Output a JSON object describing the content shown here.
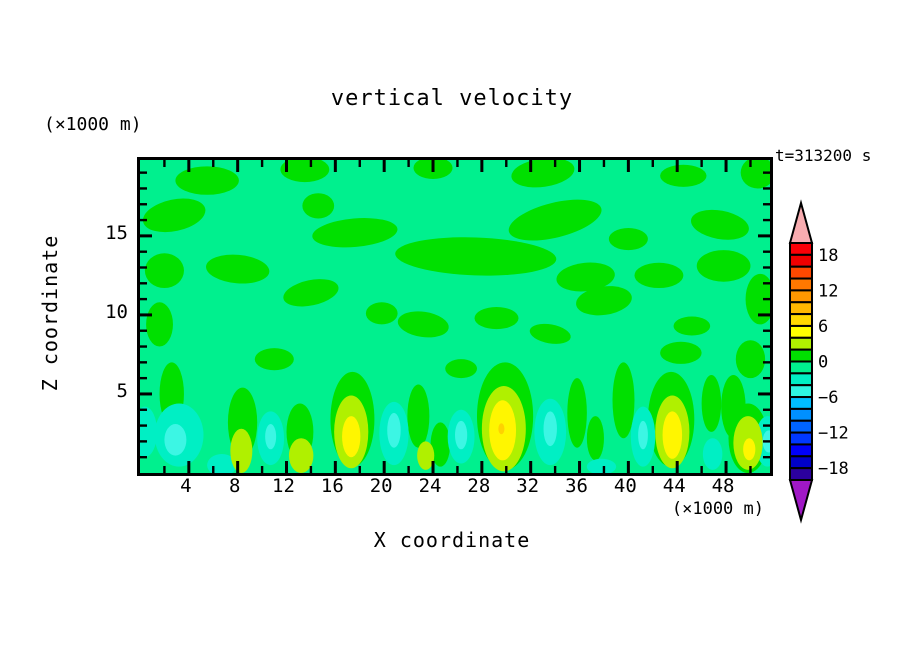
{
  "title": "vertical velocity",
  "timestamp": "t=313200 s",
  "axes": {
    "x": {
      "label": "X coordinate",
      "unit": "(×1000 m)",
      "min": 0,
      "max": 51.6,
      "minor_step": 2,
      "major_step": 4,
      "tick_labels": [
        "4",
        "8",
        "12",
        "16",
        "20",
        "24",
        "28",
        "32",
        "36",
        "40",
        "44",
        "48"
      ],
      "tick_values": [
        4,
        8,
        12,
        16,
        20,
        24,
        28,
        32,
        36,
        40,
        44,
        48
      ]
    },
    "z": {
      "label": "Z coordinate",
      "unit": "(×1000 m)",
      "min": 0,
      "max": 19.8,
      "minor_step": 1,
      "major_step": 5,
      "tick_labels": [
        "5",
        "10",
        "15"
      ],
      "tick_values": [
        5,
        10,
        15
      ]
    }
  },
  "colorbar": {
    "top_value": 20,
    "bottom_value": -20,
    "segment_step": 2,
    "labels": [
      "18",
      "12",
      "6",
      "0",
      "−6",
      "−12",
      "−18"
    ],
    "label_boundary_index": [
      1,
      4,
      7,
      10,
      13,
      16,
      19
    ],
    "segments_top_to_bottom": [
      "#FB0007",
      "#F00000",
      "#FF4800",
      "#FF7800",
      "#FF9800",
      "#FFB800",
      "#FFD800",
      "#FFFF00",
      "#B0F000",
      "#00E000",
      "#00F08E",
      "#00EFC4",
      "#2FF4E2",
      "#00BEFF",
      "#0090FF",
      "#0064FF",
      "#0038FF",
      "#0000FA",
      "#0000C8",
      "#2B009E"
    ],
    "over_color": "#F8ACB0",
    "under_color": "#A018C6"
  },
  "chart_data": {
    "type": "filled_contour",
    "field": "vertical velocity",
    "title": "vertical velocity",
    "xlabel": "X coordinate (×1000 m)",
    "ylabel": "Z coordinate (×1000 m)",
    "x_range": [
      0,
      51.6
    ],
    "z_range": [
      0,
      19.8
    ],
    "contour_interval": 2,
    "background_band": "-2..0",
    "palette": {
      "bg": "#00F08E",
      "g": "#00E000",
      "c": "#B0F000",
      "y": "#FFF600",
      "o": "#FFD200",
      "a": "#00EFC4",
      "t": "#3CF6E4"
    },
    "band_meaning": {
      "g": "0..2",
      "c": "2..4",
      "y": "4..6",
      "o": "6..8",
      "a": "-4..-2",
      "t": "-6..-4",
      "bg": "-2..0"
    },
    "features": [
      [
        5.5,
        18.5,
        2.6,
        0.9,
        0,
        "g"
      ],
      [
        13.5,
        19.2,
        2.0,
        0.8,
        0,
        "g"
      ],
      [
        24,
        19.3,
        1.6,
        0.7,
        0,
        "g"
      ],
      [
        33,
        19,
        2.6,
        0.9,
        -8,
        "g"
      ],
      [
        44.5,
        18.8,
        1.9,
        0.7,
        0,
        "g"
      ],
      [
        50.6,
        19,
        1.4,
        1.0,
        0,
        "g"
      ],
      [
        2.8,
        16.3,
        2.6,
        1.0,
        -12,
        "g"
      ],
      [
        14.6,
        16.9,
        1.3,
        0.8,
        0,
        "g"
      ],
      [
        17.6,
        15.2,
        3.5,
        0.9,
        -5,
        "g"
      ],
      [
        34,
        16,
        3.9,
        1.1,
        -14,
        "g"
      ],
      [
        40,
        14.8,
        1.6,
        0.7,
        0,
        "g"
      ],
      [
        47.5,
        15.7,
        2.4,
        0.9,
        10,
        "g"
      ],
      [
        8,
        12.9,
        2.6,
        0.9,
        5,
        "g"
      ],
      [
        2,
        12.8,
        1.6,
        1.1,
        0,
        "g"
      ],
      [
        14,
        11.4,
        2.3,
        0.8,
        -12,
        "g"
      ],
      [
        27.5,
        13.7,
        6.6,
        1.2,
        2,
        "g"
      ],
      [
        36.5,
        12.4,
        2.4,
        0.9,
        -6,
        "g"
      ],
      [
        42.5,
        12.5,
        2.0,
        0.8,
        0,
        "g"
      ],
      [
        47.8,
        13.1,
        2.2,
        1.0,
        0,
        "g"
      ],
      [
        50.8,
        11,
        1.2,
        1.6,
        0,
        "g"
      ],
      [
        1.6,
        9.4,
        1.1,
        1.4,
        0,
        "g"
      ],
      [
        19.8,
        10.1,
        1.3,
        0.7,
        0,
        "g"
      ],
      [
        23.2,
        9.4,
        2.1,
        0.8,
        8,
        "g"
      ],
      [
        29.2,
        9.8,
        1.8,
        0.7,
        0,
        "g"
      ],
      [
        33.6,
        8.8,
        1.7,
        0.6,
        10,
        "g"
      ],
      [
        38,
        10.9,
        2.3,
        0.9,
        -8,
        "g"
      ],
      [
        45.2,
        9.3,
        1.5,
        0.6,
        0,
        "g"
      ],
      [
        50,
        7.2,
        1.2,
        1.2,
        0,
        "g"
      ],
      [
        11,
        7.2,
        1.6,
        0.7,
        0,
        "g"
      ],
      [
        26.3,
        6.6,
        1.3,
        0.6,
        0,
        "g"
      ],
      [
        44.3,
        7.6,
        1.7,
        0.7,
        0,
        "g"
      ],
      [
        2.6,
        5,
        1.0,
        2.0,
        0,
        "g"
      ],
      [
        8.4,
        3.2,
        1.2,
        2.2,
        0,
        "g"
      ],
      [
        13.1,
        2.6,
        1.1,
        1.8,
        0,
        "g"
      ],
      [
        17.4,
        3.4,
        1.8,
        3.0,
        0,
        "g"
      ],
      [
        22.8,
        3.6,
        0.9,
        2.0,
        0,
        "g"
      ],
      [
        24.6,
        1.8,
        0.8,
        1.4,
        0,
        "g"
      ],
      [
        29.9,
        3.6,
        2.3,
        3.4,
        0,
        "g"
      ],
      [
        35.8,
        3.8,
        0.8,
        2.2,
        0,
        "g"
      ],
      [
        37.3,
        2.2,
        0.7,
        1.4,
        0,
        "g"
      ],
      [
        39.6,
        4.6,
        0.9,
        2.4,
        0,
        "g"
      ],
      [
        43.5,
        3.4,
        1.9,
        3.0,
        0,
        "g"
      ],
      [
        46.8,
        4.4,
        0.8,
        1.8,
        0,
        "g"
      ],
      [
        48.6,
        4.2,
        1.0,
        2.0,
        0,
        "g"
      ],
      [
        49.8,
        2.2,
        1.6,
        2.2,
        0,
        "g"
      ],
      [
        3.2,
        2.4,
        2.0,
        2.0,
        0,
        "a"
      ],
      [
        0.4,
        2.6,
        1.0,
        1.6,
        0,
        "a"
      ],
      [
        10.7,
        2.2,
        1.1,
        1.7,
        0,
        "a"
      ],
      [
        20.8,
        2.5,
        1.2,
        2.0,
        0,
        "a"
      ],
      [
        26.3,
        2.3,
        1.1,
        1.7,
        0,
        "a"
      ],
      [
        33.6,
        2.6,
        1.3,
        2.1,
        0,
        "a"
      ],
      [
        41.2,
        2.3,
        1.0,
        1.9,
        0,
        "a"
      ],
      [
        51.4,
        2.0,
        1.0,
        1.6,
        0,
        "a"
      ],
      [
        46.9,
        1.2,
        0.8,
        1.0,
        0,
        "a"
      ],
      [
        6.7,
        0.5,
        1.2,
        0.7,
        0,
        "a"
      ],
      [
        37.8,
        0.4,
        1.2,
        0.5,
        0,
        "a"
      ],
      [
        2.9,
        2.1,
        0.9,
        1.0,
        0,
        "t"
      ],
      [
        10.7,
        2.3,
        0.45,
        0.8,
        0,
        "t"
      ],
      [
        20.8,
        2.7,
        0.55,
        1.1,
        0,
        "t"
      ],
      [
        26.3,
        2.4,
        0.5,
        0.9,
        0,
        "t"
      ],
      [
        33.6,
        2.8,
        0.55,
        1.1,
        0,
        "t"
      ],
      [
        41.2,
        2.4,
        0.4,
        0.9,
        0,
        "t"
      ],
      [
        51.5,
        2.0,
        0.5,
        0.7,
        0,
        "t"
      ],
      [
        8.3,
        1.4,
        0.9,
        1.4,
        0,
        "c"
      ],
      [
        13.2,
        1.1,
        1.0,
        1.1,
        0,
        "c"
      ],
      [
        17.3,
        2.6,
        1.4,
        2.3,
        0,
        "c"
      ],
      [
        23.4,
        1.1,
        0.7,
        0.9,
        0,
        "c"
      ],
      [
        29.8,
        2.8,
        1.8,
        2.7,
        0,
        "c"
      ],
      [
        43.6,
        2.6,
        1.4,
        2.3,
        0,
        "c"
      ],
      [
        49.8,
        1.9,
        1.2,
        1.7,
        0,
        "c"
      ],
      [
        17.3,
        2.3,
        0.75,
        1.3,
        0,
        "y"
      ],
      [
        29.7,
        2.7,
        1.1,
        1.9,
        0,
        "y"
      ],
      [
        43.6,
        2.4,
        0.8,
        1.5,
        0,
        "y"
      ],
      [
        49.9,
        1.5,
        0.5,
        0.7,
        0,
        "y"
      ],
      [
        29.6,
        2.8,
        0.25,
        0.35,
        0,
        "o"
      ]
    ]
  }
}
